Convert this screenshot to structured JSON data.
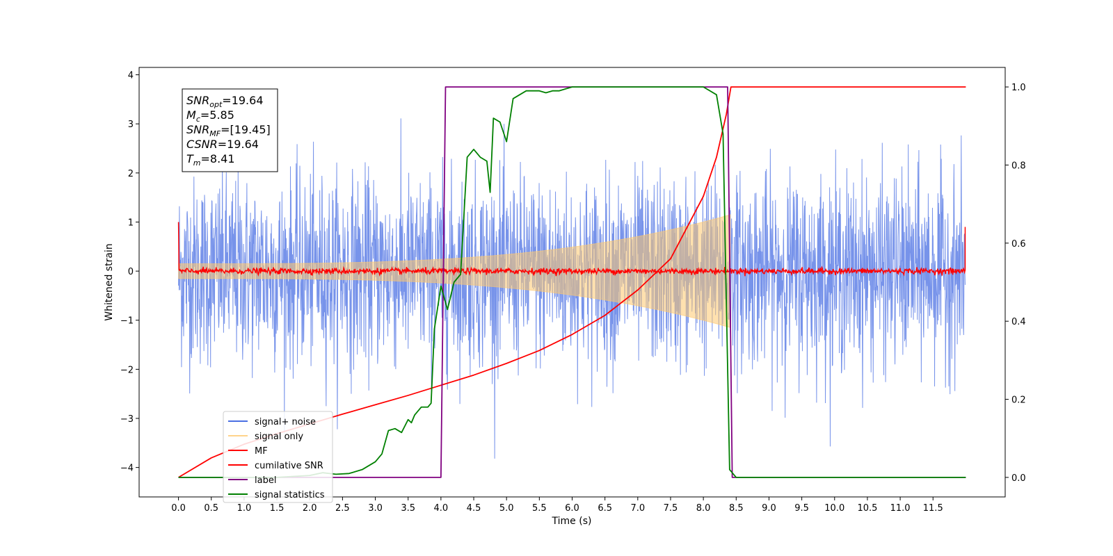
{
  "chart_data": {
    "type": "line",
    "xlabel": "Time (s)",
    "ylabel": "Whitened strain",
    "xlim": [
      -0.6,
      12.6
    ],
    "ylim": [
      -4.6,
      4.15
    ],
    "y2lim": [
      -0.05,
      1.05
    ],
    "x_ticks": [
      "0.0",
      "0.5",
      "1.0",
      "1.5",
      "2.0",
      "2.5",
      "3.0",
      "3.5",
      "4.0",
      "4.5",
      "5.0",
      "5.5",
      "6.0",
      "6.5",
      "7.0",
      "7.5",
      "8.0",
      "8.5",
      "9.0",
      "9.5",
      "10.0",
      "10.5",
      "11.0",
      "11.5"
    ],
    "y_ticks": [
      "4",
      "3",
      "2",
      "1",
      "0",
      "−1",
      "−2",
      "−3",
      "−4"
    ],
    "y2_ticks": [
      "1.0",
      "0.8",
      "0.6",
      "0.4",
      "0.2",
      "0.0"
    ],
    "grid": false,
    "legend_position": "lower-left",
    "annotation": [
      {
        "base": "SNR",
        "sub": "opt",
        "value": "=19.64"
      },
      {
        "base": "M",
        "sub": "c",
        "value": "=5.85"
      },
      {
        "base": "SNR",
        "sub": "MF",
        "value": "=[19.45]"
      },
      {
        "base": "CSNR",
        "sub": "",
        "value": "=19.64"
      },
      {
        "base": "T",
        "sub": "m",
        "value": "=8.41"
      }
    ],
    "series": [
      {
        "name": "signal+ noise",
        "axis": "left",
        "color": "#4a6fe3",
        "x_range": [
          0,
          11.99
        ],
        "amplitude_sd": 0.95,
        "note_values": "stochastic noise, peaks about ±3.8"
      },
      {
        "name": "signal only",
        "axis": "left",
        "color": "#ffc86e",
        "chirp": {
          "t_start": 0.0,
          "t_merge": 8.41,
          "amp_start": 0.15,
          "amp_end": 1.15
        }
      },
      {
        "name": "MF",
        "axis": "left",
        "color": "#ff0000",
        "x_range": [
          0,
          11.99
        ],
        "level": 0.0,
        "jitter": 0.06,
        "edge_values": [
          1.0,
          0.9
        ]
      },
      {
        "name": "cumilative SNR",
        "axis": "right",
        "color": "#ff0000",
        "x": [
          0.0,
          0.5,
          1.0,
          1.5,
          2.0,
          2.5,
          3.0,
          3.5,
          4.0,
          4.5,
          5.0,
          5.5,
          6.0,
          6.5,
          7.0,
          7.5,
          8.0,
          8.2,
          8.35,
          8.42,
          12.0
        ],
        "y": [
          0.0,
          0.05,
          0.085,
          0.112,
          0.137,
          0.162,
          0.186,
          0.21,
          0.236,
          0.262,
          0.292,
          0.325,
          0.366,
          0.415,
          0.48,
          0.56,
          0.72,
          0.82,
          0.93,
          1.0,
          1.0
        ]
      },
      {
        "name": "label",
        "axis": "right",
        "color": "#800080",
        "x": [
          0.0,
          4.0,
          4.07,
          8.37,
          8.44,
          12.0
        ],
        "y": [
          0.0,
          0.0,
          1.0,
          1.0,
          0.0,
          0.0
        ]
      },
      {
        "name": "signal statistics",
        "axis": "right",
        "color": "#008000",
        "x": [
          0.0,
          1.5,
          2.0,
          2.2,
          2.4,
          2.6,
          2.8,
          2.9,
          3.0,
          3.1,
          3.2,
          3.3,
          3.4,
          3.5,
          3.55,
          3.6,
          3.7,
          3.8,
          3.85,
          3.9,
          4.0,
          4.1,
          4.2,
          4.3,
          4.4,
          4.45,
          4.5,
          4.6,
          4.7,
          4.75,
          4.8,
          4.9,
          5.0,
          5.1,
          5.2,
          5.3,
          5.4,
          5.5,
          5.6,
          5.7,
          5.8,
          5.9,
          6.0,
          6.1,
          6.2,
          6.4,
          6.6,
          6.8,
          7.0,
          7.5,
          8.0,
          8.2,
          8.3,
          8.35,
          8.4,
          8.5,
          12.0
        ],
        "y": [
          0.0,
          0.0,
          0.005,
          0.012,
          0.008,
          0.01,
          0.02,
          0.03,
          0.04,
          0.06,
          0.12,
          0.125,
          0.115,
          0.148,
          0.14,
          0.16,
          0.18,
          0.18,
          0.19,
          0.38,
          0.49,
          0.43,
          0.5,
          0.52,
          0.82,
          0.83,
          0.84,
          0.82,
          0.81,
          0.73,
          0.92,
          0.91,
          0.86,
          0.97,
          0.98,
          0.99,
          0.99,
          0.99,
          0.985,
          0.99,
          0.99,
          0.995,
          1.0,
          1.0,
          1.0,
          1.0,
          1.0,
          1.0,
          1.0,
          1.0,
          1.0,
          0.98,
          0.88,
          0.45,
          0.02,
          0.0,
          0.0
        ]
      }
    ]
  }
}
